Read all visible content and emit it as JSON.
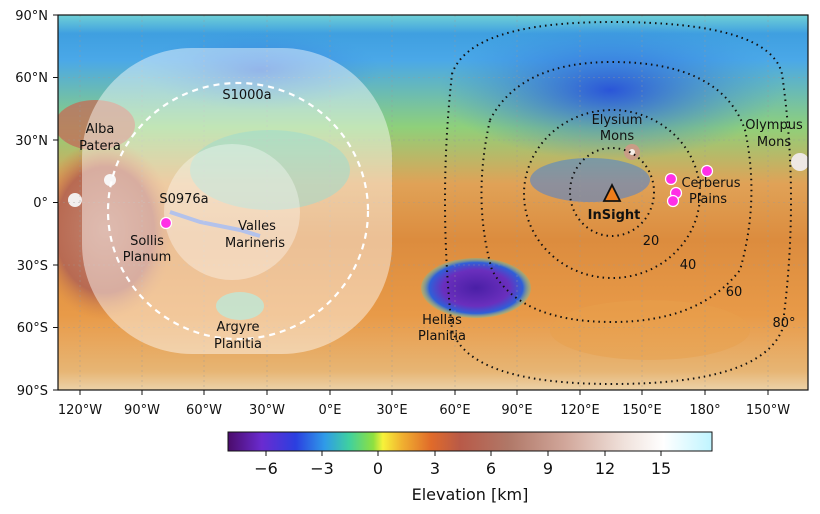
{
  "map": {
    "y_ticks": [
      "90°N",
      "60°N",
      "30°N",
      "0°",
      "30°S",
      "60°S",
      "90°S"
    ],
    "x_ticks": [
      "120°W",
      "90°W",
      "60°W",
      "30°W",
      "0°E",
      "30°E",
      "60°E",
      "90°E",
      "120°E",
      "150°E",
      "180°",
      "150°W"
    ],
    "regions": {
      "alba_1": "Alba",
      "alba_2": "Patera",
      "elysium_1": "Elysium",
      "elysium_2": "Mons",
      "olympus_1": "Olympus",
      "olympus_2": "Mons",
      "cerberus_1": "Cerberus",
      "cerberus_2": "Plains",
      "valles_1": "Valles",
      "valles_2": "Marineris",
      "sollis_1": "Sollis",
      "sollis_2": "Planum",
      "argyre_1": "Argyre",
      "argyre_2": "Planitia",
      "hellas_1": "Hellas",
      "hellas_2": "Planitia"
    },
    "events": {
      "s1000a": "S1000a",
      "s0976a": "S0976a"
    },
    "lander": "InSight",
    "distance_labels": [
      "20",
      "40",
      "60",
      "80°"
    ],
    "colors": {
      "marker": "#ff2ee6",
      "lander": "#f07d1b"
    }
  },
  "colorbar": {
    "ticks": [
      "−6",
      "−3",
      "0",
      "3",
      "6",
      "9",
      "12",
      "15"
    ],
    "label": "Elevation [km]"
  }
}
